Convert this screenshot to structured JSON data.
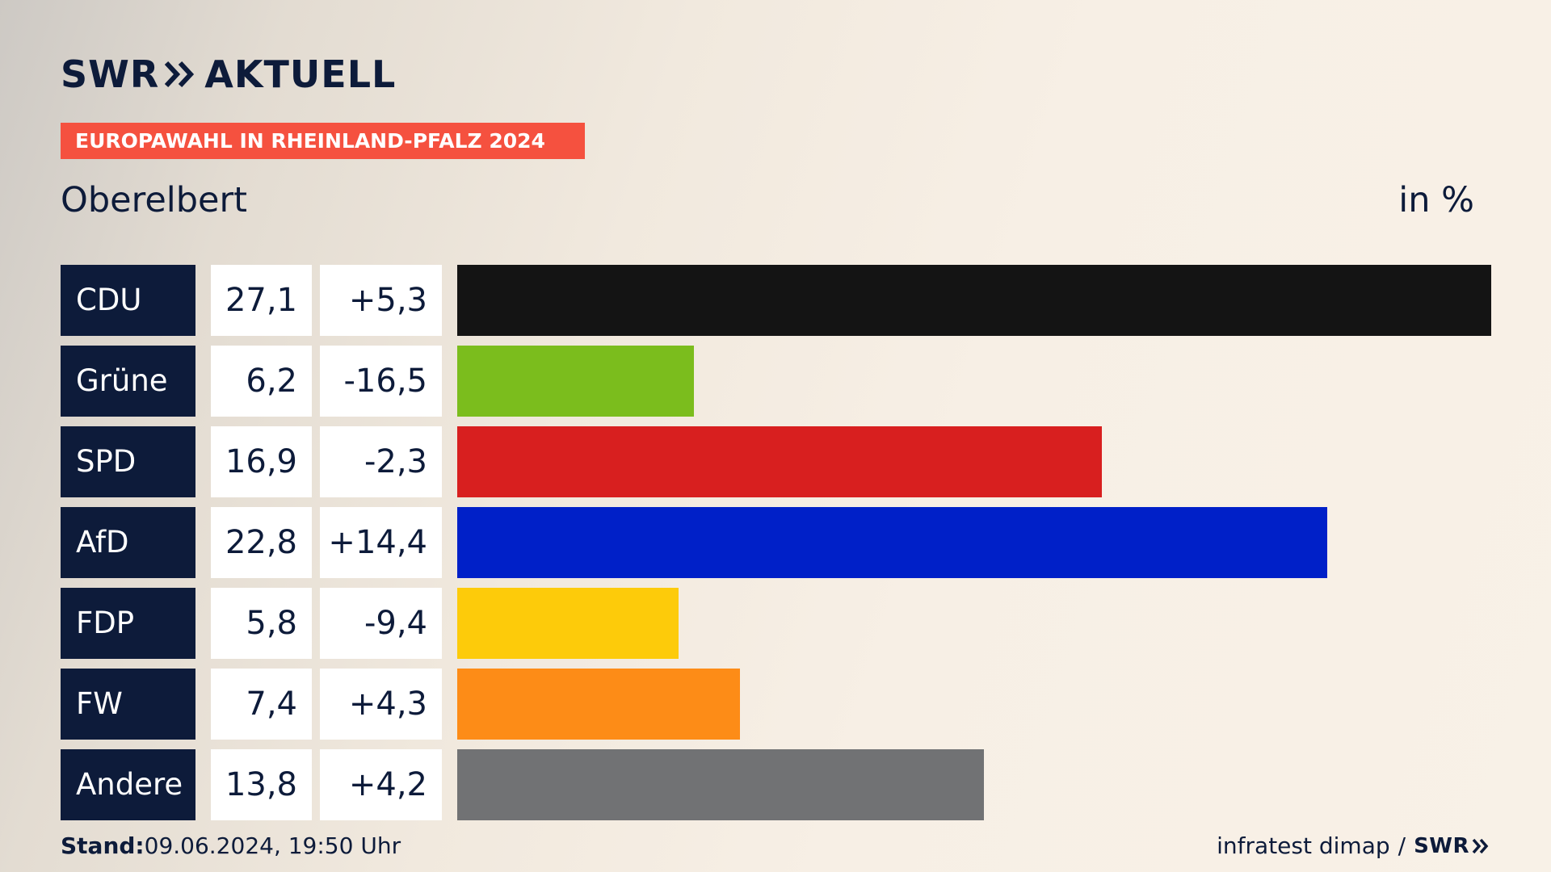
{
  "brand": {
    "prefix": "SWR",
    "suffix": "AKTUELL",
    "color": "#0d1b3a",
    "icon": "double-chevron-right-icon"
  },
  "banner": {
    "text": "EUROPAWAHL IN RHEINLAND-PFALZ 2024",
    "color": "#f5513f"
  },
  "subtitle": "Oberelbert",
  "unit": "in %",
  "chart_data": {
    "type": "bar",
    "orientation": "horizontal",
    "categories": [
      "CDU",
      "Grüne",
      "SPD",
      "AfD",
      "FDP",
      "FW",
      "Andere"
    ],
    "series": [
      {
        "name": "",
        "values": [
          27.1,
          6.2,
          16.9,
          22.8,
          5.8,
          7.4,
          13.8
        ],
        "labels": [
          "27,1",
          "6,2",
          "16,9",
          "22,8",
          "5,8",
          "7,4",
          "13,8"
        ]
      }
    ],
    "differences": [
      5.3,
      -16.5,
      -2.3,
      14.4,
      -9.4,
      4.3,
      4.2
    ],
    "difference_labels": [
      "+5,3",
      "-16,5",
      "-2,3",
      "+14,4",
      "-9,4",
      "+4,3",
      "+4,2"
    ],
    "colors": [
      "#141414",
      "#7bbd1d",
      "#d81f1f",
      "#0020c8",
      "#fdcb0a",
      "#fd8c17",
      "#717274"
    ],
    "xlim": [
      0,
      27.1
    ],
    "grid": false,
    "legend": "none",
    "title": "",
    "xlabel": "",
    "ylabel": ""
  },
  "footer": {
    "stand_label": "Stand:",
    "stand_value": "09.06.2024, 19:50 Uhr",
    "source": "infratest dimap",
    "separator": "/",
    "source_logo": "SWR",
    "source_icon": "double-chevron-right-icon"
  }
}
